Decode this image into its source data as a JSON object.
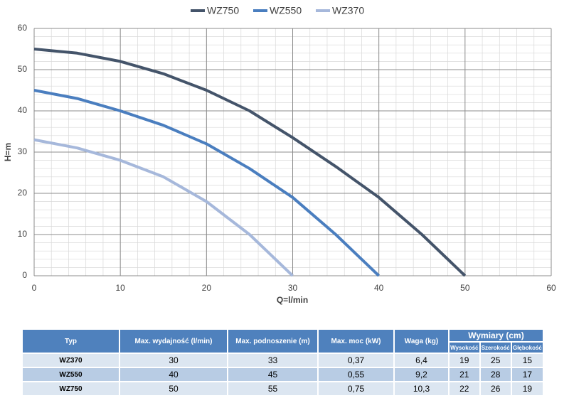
{
  "chart_data": {
    "type": "line",
    "x_label": "Q=l/min",
    "y_label": "H=m",
    "x": [
      0,
      5,
      10,
      15,
      20,
      25,
      30,
      35,
      40,
      45,
      50
    ],
    "series": [
      {
        "name": "WZ750",
        "color": "#44546a",
        "values": [
          55,
          54,
          52,
          49,
          45,
          40,
          33.5,
          26.5,
          19,
          10,
          0
        ]
      },
      {
        "name": "WZ550",
        "color": "#4a7ebf",
        "values": [
          45,
          43,
          40,
          36.5,
          32,
          26,
          19,
          10,
          0,
          null,
          null
        ]
      },
      {
        "name": "WZ370",
        "color": "#a6b8db",
        "values": [
          33,
          31,
          28,
          24,
          18,
          10,
          0,
          null,
          null,
          null,
          null
        ]
      }
    ],
    "xlim": [
      0,
      60
    ],
    "xticks": [
      0,
      10,
      20,
      30,
      40,
      50,
      60
    ],
    "ylim": [
      0,
      60
    ],
    "yticks": [
      0,
      10,
      20,
      30,
      40,
      50,
      60
    ],
    "grid": true,
    "legend": "top"
  },
  "table": {
    "header": [
      "Typ",
      "Max. wydajność (l/min)",
      "Max. podnoszenie (m)",
      "Max. moc (kW)",
      "Waga (kg)",
      "Wymiary (cm)"
    ],
    "subheader": [
      "Wysokość",
      "Szerokość",
      "Głębokość"
    ],
    "rows": [
      [
        "WZ370",
        "30",
        "33",
        "0,37",
        "6,4",
        "19",
        "25",
        "15"
      ],
      [
        "WZ550",
        "40",
        "45",
        "0,55",
        "9,2",
        "21",
        "28",
        "17"
      ],
      [
        "WZ750",
        "50",
        "55",
        "0,75",
        "10,3",
        "22",
        "26",
        "19"
      ]
    ]
  }
}
